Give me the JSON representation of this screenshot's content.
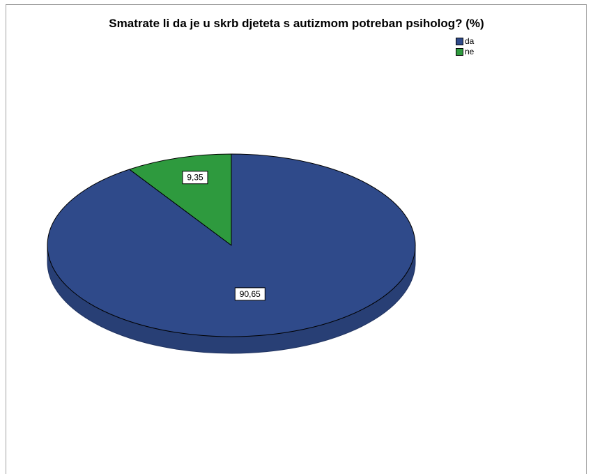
{
  "chart_data": {
    "type": "pie",
    "title": "Smatrate li da je u skrb djeteta s autizmom potreban psiholog? (%)",
    "categories": [
      "da",
      "ne"
    ],
    "values": [
      90.65,
      9.35
    ],
    "data_labels": [
      "90,65",
      "9,35"
    ],
    "colors": [
      "#2f4a8a",
      "#2e9a3e"
    ],
    "legend": {
      "placement": "top-right",
      "entries": [
        "da",
        "ne"
      ]
    },
    "style": "3d-tilted"
  }
}
